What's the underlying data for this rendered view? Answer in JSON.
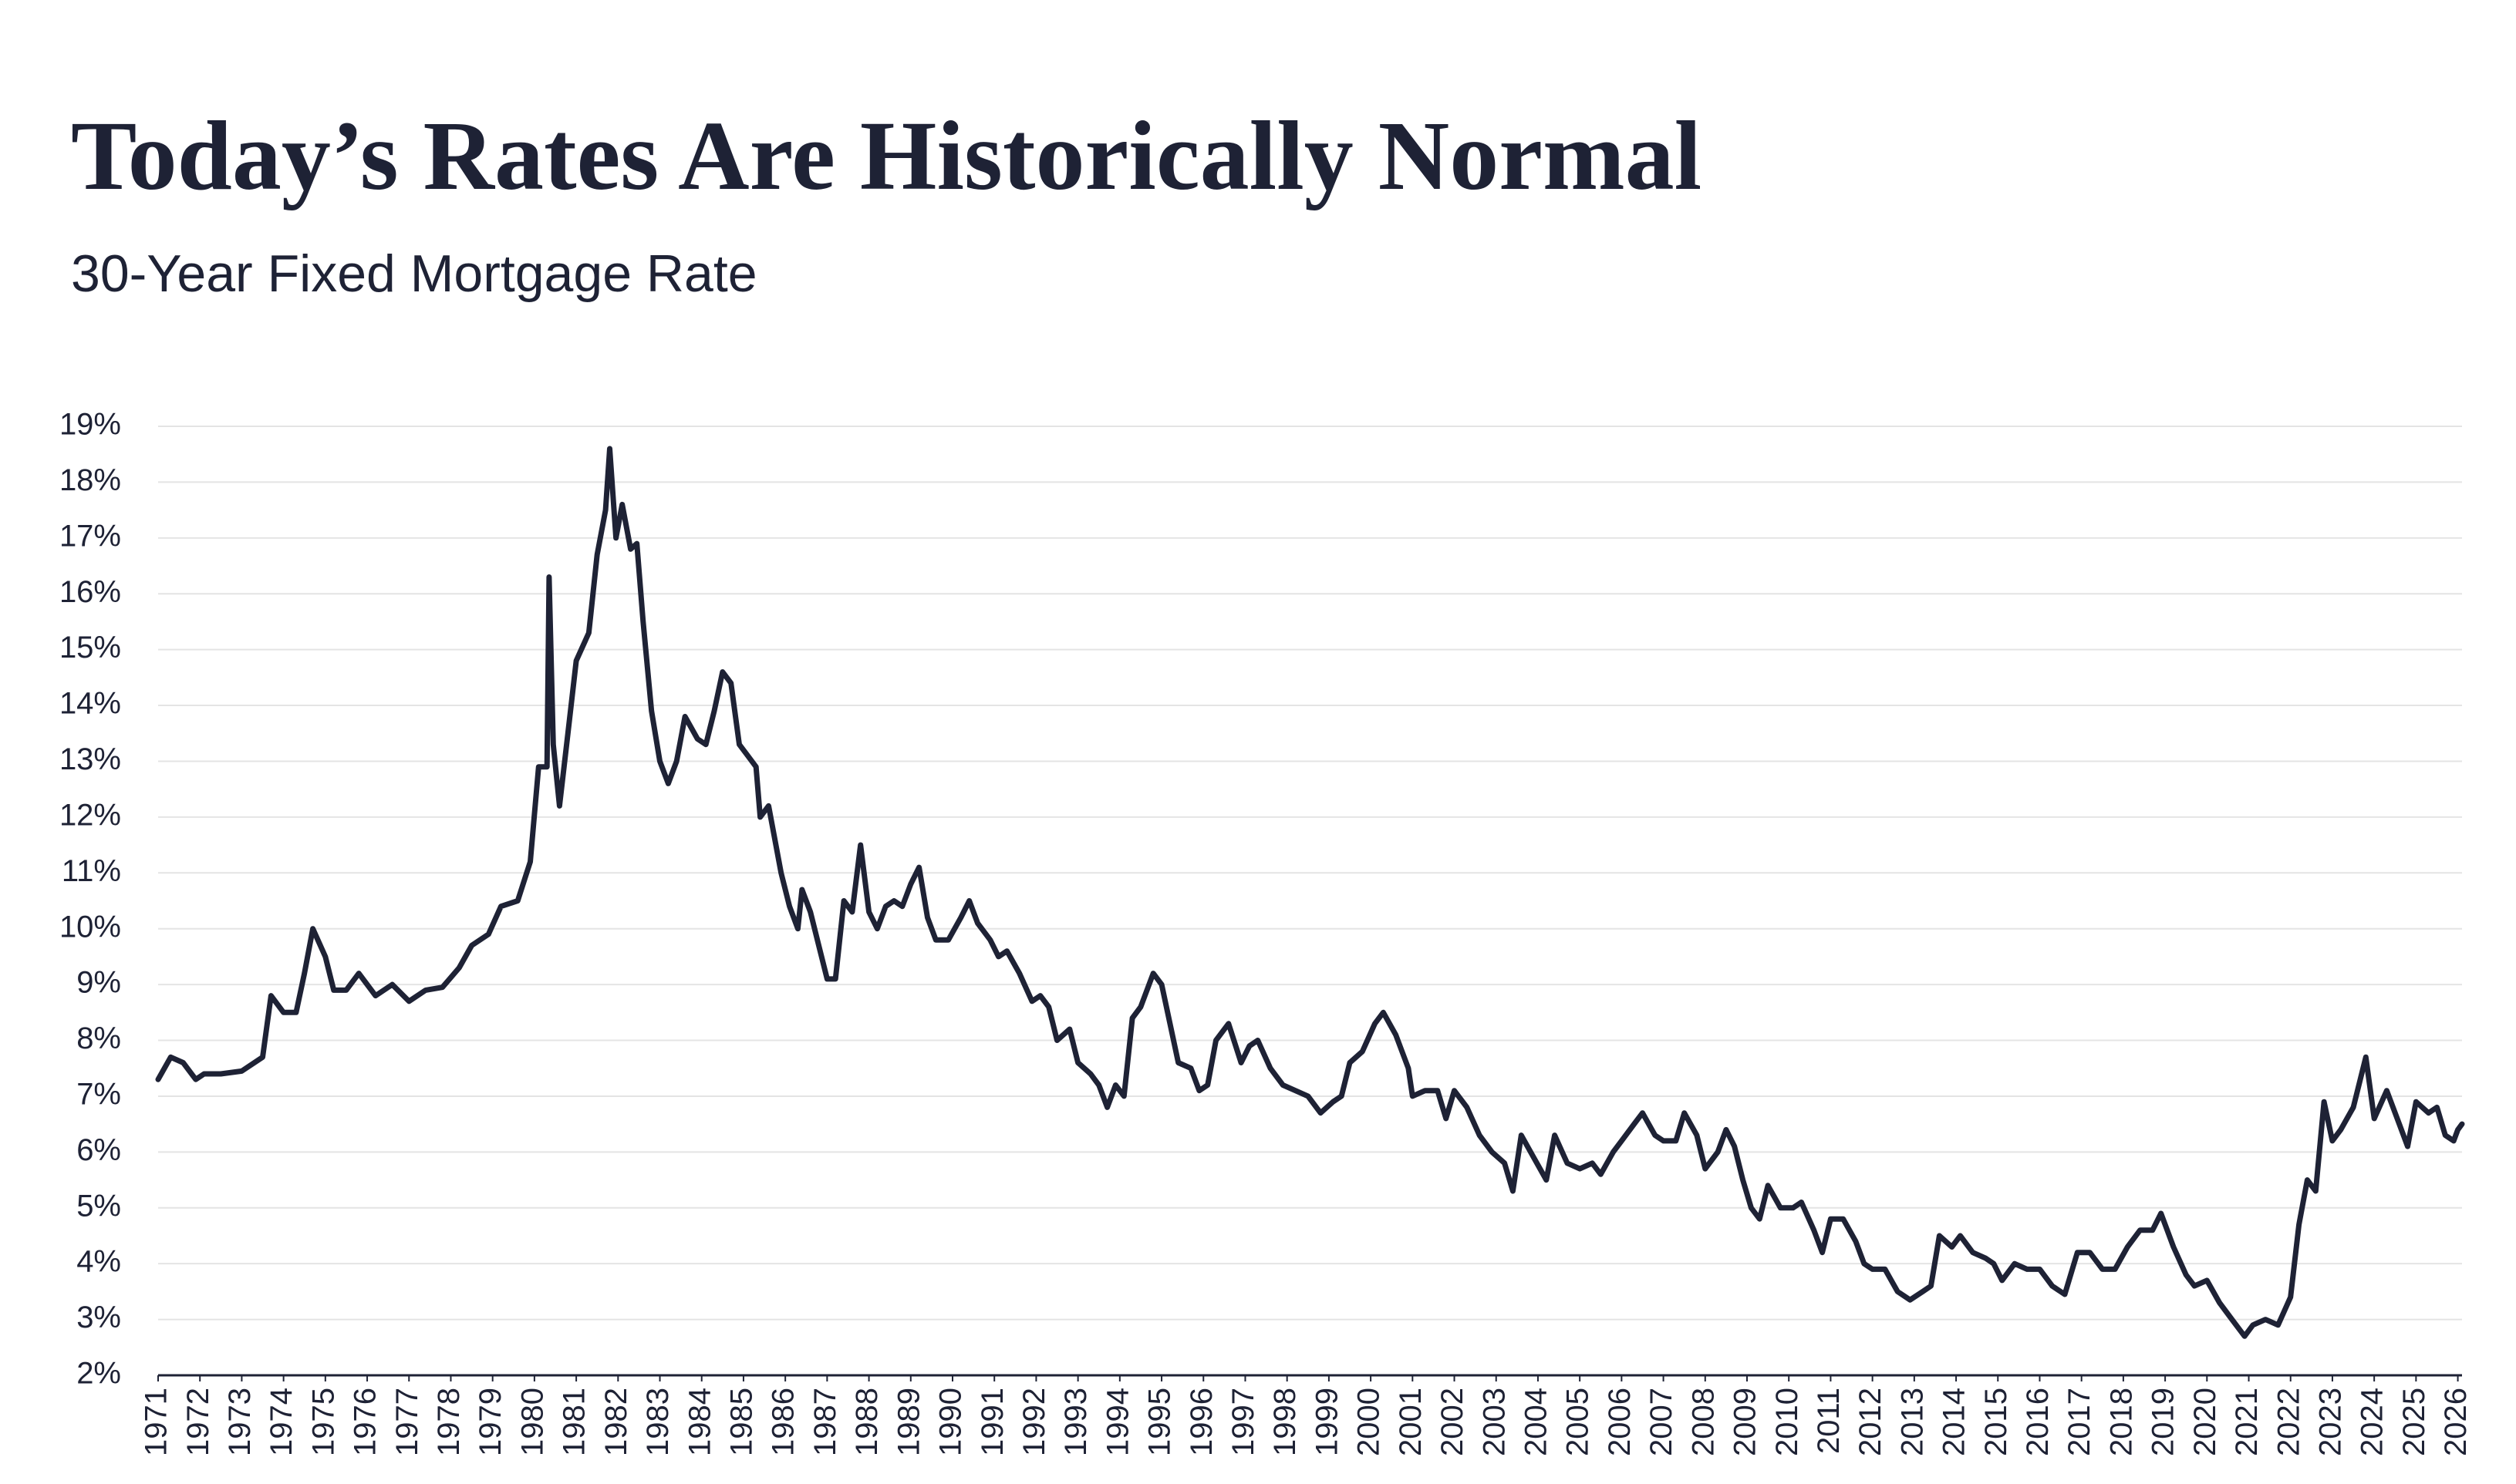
{
  "chart_data": {
    "type": "line",
    "title": "Today’s Rates Are Historically Normal",
    "subtitle": "30-Year Fixed Mortgage Rate",
    "grid": true,
    "xlim": [
      1971,
      2026.1
    ],
    "ylim": [
      2,
      19
    ],
    "yticks": [
      {
        "value": 2,
        "label": "2%"
      },
      {
        "value": 3,
        "label": "3%"
      },
      {
        "value": 4,
        "label": "4%"
      },
      {
        "value": 5,
        "label": "5%"
      },
      {
        "value": 6,
        "label": "6%"
      },
      {
        "value": 7,
        "label": "7%"
      },
      {
        "value": 8,
        "label": "8%"
      },
      {
        "value": 9,
        "label": "9%"
      },
      {
        "value": 10,
        "label": "10%"
      },
      {
        "value": 11,
        "label": "11%"
      },
      {
        "value": 12,
        "label": "12%"
      },
      {
        "value": 13,
        "label": "13%"
      },
      {
        "value": 14,
        "label": "14%"
      },
      {
        "value": 15,
        "label": "15%"
      },
      {
        "value": 16,
        "label": "16%"
      },
      {
        "value": 17,
        "label": "17%"
      },
      {
        "value": 18,
        "label": "18%"
      },
      {
        "value": 19,
        "label": "19%"
      }
    ],
    "xticks": [
      1971,
      1972,
      1973,
      1974,
      1975,
      1976,
      1977,
      1978,
      1979,
      1980,
      1981,
      1982,
      1983,
      1984,
      1985,
      1986,
      1987,
      1988,
      1989,
      1990,
      1991,
      1992,
      1993,
      1994,
      1995,
      1996,
      1997,
      1998,
      1999,
      2000,
      2001,
      2002,
      2003,
      2004,
      2005,
      2006,
      2007,
      2008,
      2009,
      2010,
      2011,
      2012,
      2013,
      2014,
      2015,
      2016,
      2017,
      2018,
      2019,
      2020,
      2021,
      2022,
      2023,
      2024,
      2025,
      2026
    ],
    "x": [
      1971.0,
      1971.3,
      1971.6,
      1971.9,
      1972.1,
      1972.5,
      1973.0,
      1973.5,
      1973.7,
      1974.0,
      1974.3,
      1974.5,
      1974.7,
      1975.0,
      1975.2,
      1975.5,
      1975.8,
      1976.2,
      1976.6,
      1977.0,
      1977.4,
      1977.8,
      1978.2,
      1978.5,
      1978.9,
      1979.2,
      1979.6,
      1979.9,
      1980.1,
      1980.3,
      1980.35,
      1980.45,
      1980.6,
      1980.8,
      1981.0,
      1981.3,
      1981.5,
      1981.7,
      1981.8,
      1981.95,
      1982.1,
      1982.3,
      1982.45,
      1982.6,
      1982.8,
      1983.0,
      1983.2,
      1983.4,
      1983.6,
      1983.9,
      1984.1,
      1984.3,
      1984.5,
      1984.7,
      1984.9,
      1985.1,
      1985.3,
      1985.4,
      1985.6,
      1985.9,
      1986.1,
      1986.3,
      1986.4,
      1986.6,
      1986.8,
      1987.0,
      1987.2,
      1987.4,
      1987.6,
      1987.8,
      1988.0,
      1988.2,
      1988.4,
      1988.6,
      1988.8,
      1989.0,
      1989.2,
      1989.4,
      1989.6,
      1989.9,
      1990.2,
      1990.4,
      1990.6,
      1990.9,
      1991.1,
      1991.3,
      1991.6,
      1991.9,
      1992.1,
      1992.3,
      1992.5,
      1992.8,
      1993.0,
      1993.3,
      1993.5,
      1993.7,
      1993.9,
      1994.1,
      1994.3,
      1994.5,
      1994.8,
      1995.0,
      1995.2,
      1995.4,
      1995.7,
      1995.9,
      1996.1,
      1996.3,
      1996.6,
      1996.9,
      1997.1,
      1997.3,
      1997.6,
      1997.9,
      1998.2,
      1998.5,
      1998.8,
      1999.1,
      1999.3,
      1999.5,
      1999.8,
      2000.1,
      2000.3,
      2000.6,
      2000.9,
      2001.0,
      2001.3,
      2001.6,
      2001.8,
      2002.0,
      2002.3,
      2002.6,
      2002.9,
      2003.2,
      2003.4,
      2003.6,
      2003.9,
      2004.2,
      2004.4,
      2004.7,
      2005.0,
      2005.3,
      2005.5,
      2005.8,
      2006.0,
      2006.3,
      2006.5,
      2006.8,
      2007.0,
      2007.3,
      2007.5,
      2007.8,
      2008.0,
      2008.3,
      2008.5,
      2008.7,
      2008.9,
      2009.1,
      2009.3,
      2009.5,
      2009.8,
      2010.1,
      2010.3,
      2010.6,
      2010.8,
      2011.0,
      2011.3,
      2011.6,
      2011.8,
      2012.0,
      2012.3,
      2012.6,
      2012.9,
      2013.2,
      2013.4,
      2013.6,
      2013.9,
      2014.1,
      2014.4,
      2014.7,
      2014.9,
      2015.1,
      2015.4,
      2015.7,
      2016.0,
      2016.3,
      2016.6,
      2016.9,
      2017.2,
      2017.5,
      2017.8,
      2018.1,
      2018.4,
      2018.7,
      2018.9,
      2019.2,
      2019.5,
      2019.7,
      2020.0,
      2020.3,
      2020.6,
      2020.9,
      2021.1,
      2021.4,
      2021.7,
      2022.0,
      2022.2,
      2022.4,
      2022.6,
      2022.8,
      2023.0,
      2023.2,
      2023.5,
      2023.8,
      2024.0,
      2024.3,
      2024.6,
      2024.8,
      2025.0,
      2025.3,
      2025.5,
      2025.7,
      2025.9,
      2026.0,
      2026.1
    ],
    "series": [
      {
        "color": "#1e2235",
        "values": [
          7.3,
          7.7,
          7.6,
          7.3,
          7.4,
          7.4,
          7.45,
          7.7,
          8.8,
          8.5,
          8.5,
          9.2,
          10.0,
          9.5,
          8.9,
          8.9,
          9.2,
          8.8,
          9.0,
          8.7,
          8.9,
          8.95,
          9.3,
          9.7,
          9.9,
          10.4,
          10.5,
          11.2,
          12.9,
          12.9,
          16.3,
          13.3,
          12.2,
          13.5,
          14.8,
          15.3,
          16.7,
          17.5,
          18.6,
          17.0,
          17.6,
          16.8,
          16.9,
          15.5,
          13.9,
          13.0,
          12.6,
          13.0,
          13.8,
          13.4,
          13.3,
          13.9,
          14.6,
          14.4,
          13.3,
          13.1,
          12.9,
          12.0,
          12.2,
          11.0,
          10.4,
          10.0,
          10.7,
          10.3,
          9.7,
          9.1,
          9.1,
          10.5,
          10.3,
          11.5,
          10.3,
          10.0,
          10.4,
          10.5,
          10.4,
          10.8,
          11.1,
          10.2,
          9.8,
          9.8,
          10.2,
          10.5,
          10.1,
          9.8,
          9.5,
          9.6,
          9.2,
          8.7,
          8.8,
          8.6,
          8.0,
          8.2,
          7.6,
          7.4,
          7.2,
          6.8,
          7.2,
          7.0,
          8.4,
          8.6,
          9.2,
          9.0,
          8.3,
          7.6,
          7.5,
          7.1,
          7.2,
          8.0,
          8.3,
          7.6,
          7.9,
          8.0,
          7.5,
          7.2,
          7.1,
          7.0,
          6.7,
          6.9,
          7.0,
          7.6,
          7.8,
          8.3,
          8.5,
          8.1,
          7.5,
          7.0,
          7.1,
          7.1,
          6.6,
          7.1,
          6.8,
          6.3,
          6.0,
          5.8,
          5.3,
          6.3,
          5.9,
          5.5,
          6.3,
          5.8,
          5.7,
          5.8,
          5.6,
          6.0,
          6.2,
          6.5,
          6.7,
          6.3,
          6.2,
          6.2,
          6.7,
          6.3,
          5.7,
          6.0,
          6.4,
          6.1,
          5.5,
          5.0,
          4.8,
          5.4,
          5.0,
          5.0,
          5.1,
          4.6,
          4.2,
          4.8,
          4.8,
          4.4,
          4.0,
          3.9,
          3.9,
          3.5,
          3.35,
          3.5,
          3.6,
          4.5,
          4.3,
          4.5,
          4.2,
          4.1,
          4.0,
          3.7,
          4.0,
          3.9,
          3.9,
          3.6,
          3.45,
          4.2,
          4.2,
          3.9,
          3.9,
          4.3,
          4.6,
          4.6,
          4.9,
          4.3,
          3.8,
          3.6,
          3.7,
          3.3,
          3.0,
          2.7,
          2.9,
          3.0,
          2.9,
          3.4,
          4.7,
          5.5,
          5.3,
          6.9,
          6.2,
          6.4,
          6.8,
          7.7,
          6.6,
          7.1,
          6.5,
          6.1,
          6.9,
          6.7,
          6.8,
          6.3,
          6.2,
          6.4,
          6.5
        ]
      }
    ]
  }
}
